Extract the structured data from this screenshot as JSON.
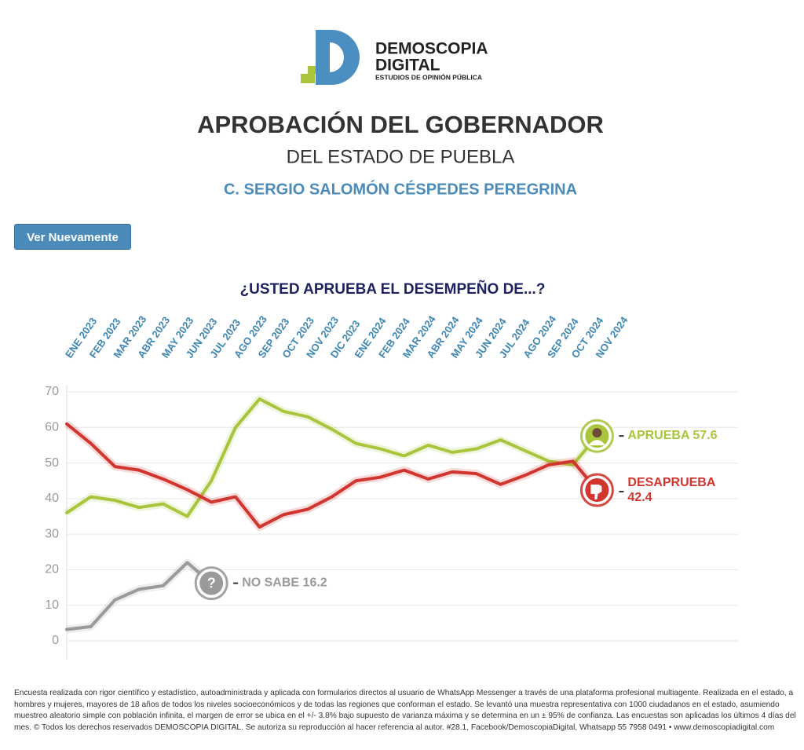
{
  "logo": {
    "line1": "DEMOSCOPIA",
    "line2": "DIGITAL",
    "tagline": "ESTUDIOS DE OPINIÓN PÚBLICA"
  },
  "header": {
    "title": "APROBACIÓN DEL GOBERNADOR",
    "subtitle": "DEL ESTADO DE PUEBLA",
    "name": "C. SERGIO SALOMÓN CÉSPEDES PEREGRINA"
  },
  "button": "Ver Nuevamente",
  "chart_data": {
    "type": "line",
    "title": "¿USTED APRUEBA EL DESEMPEÑO DE...?",
    "categories": [
      "ENE 2023",
      "FEB 2023",
      "MAR 2023",
      "ABR 2023",
      "MAY 2023",
      "JUN 2023",
      "JUL 2023",
      "AGO 2023",
      "SEP 2023",
      "OCT 2023",
      "NOV 2023",
      "DIC 2023",
      "ENE 2024",
      "FEB 2024",
      "MAR 2024",
      "ABR 2024",
      "MAY 2024",
      "JUN 2024",
      "JUL 2024",
      "AGO 2024",
      "SEP 2024",
      "OCT 2024",
      "NOV 2024"
    ],
    "series": [
      {
        "name": "APRUEBA",
        "color": "#a9c53c",
        "values": [
          36,
          40.5,
          39.5,
          37.5,
          38.5,
          35,
          45,
          60,
          68,
          64.5,
          63,
          59.5,
          55.5,
          54,
          52,
          55,
          53,
          54,
          56.5,
          53.5,
          50.5,
          49.5,
          57.6
        ]
      },
      {
        "name": "DESAPRUEBA",
        "color": "#d2342e",
        "values": [
          61,
          55.5,
          49,
          48,
          45.5,
          42.5,
          39,
          40.5,
          32,
          35.5,
          37,
          40.5,
          45,
          46,
          48,
          45.5,
          47.5,
          47,
          44,
          46.5,
          49.5,
          50.5,
          42.4
        ]
      },
      {
        "name": "NO SABE",
        "color": "#9a9a9a",
        "values": [
          3.2,
          4,
          11.5,
          14.5,
          15.5,
          22,
          16.2,
          null,
          null,
          null,
          null,
          null,
          null,
          null,
          null,
          null,
          null,
          null,
          null,
          null,
          null,
          null,
          null
        ]
      }
    ],
    "ylim": [
      0,
      70
    ],
    "yticks": [
      0,
      10,
      20,
      30,
      40,
      50,
      60,
      70
    ],
    "grid": true
  },
  "footer": [
    "Encuesta realizada con rigor científico y estadístico, autoadministrada y aplicada con formularios directos al usuario de WhatsApp Messenger a través de una plataforma profesional multiagente. Realizada en el estado, a",
    "hombres y mujeres, mayores de 18 años de todos los niveles socioeconómicos y de todas las regiones que conforman el estado. Se levantó una muestra representativa con 1000 ciudadanos en el estado, asumiendo",
    "muestreo aleatorio simple con población infinita, el margen de error se ubica en el +/- 3.8% bajo supuesto de varianza máxima y se determina en un ± 95% de confianza. Las encuestas son aplicadas los últimos 4 días del",
    "mes. © Todos los derechos reservados DEMOSCOPIA DIGITAL. Se autoriza su reproducción al hacer referencia al autor. #28.1, Facebook/DemoscopiaDigital, Whatsapp 55 7958 0491 • www.demoscopiadigital.com"
  ]
}
